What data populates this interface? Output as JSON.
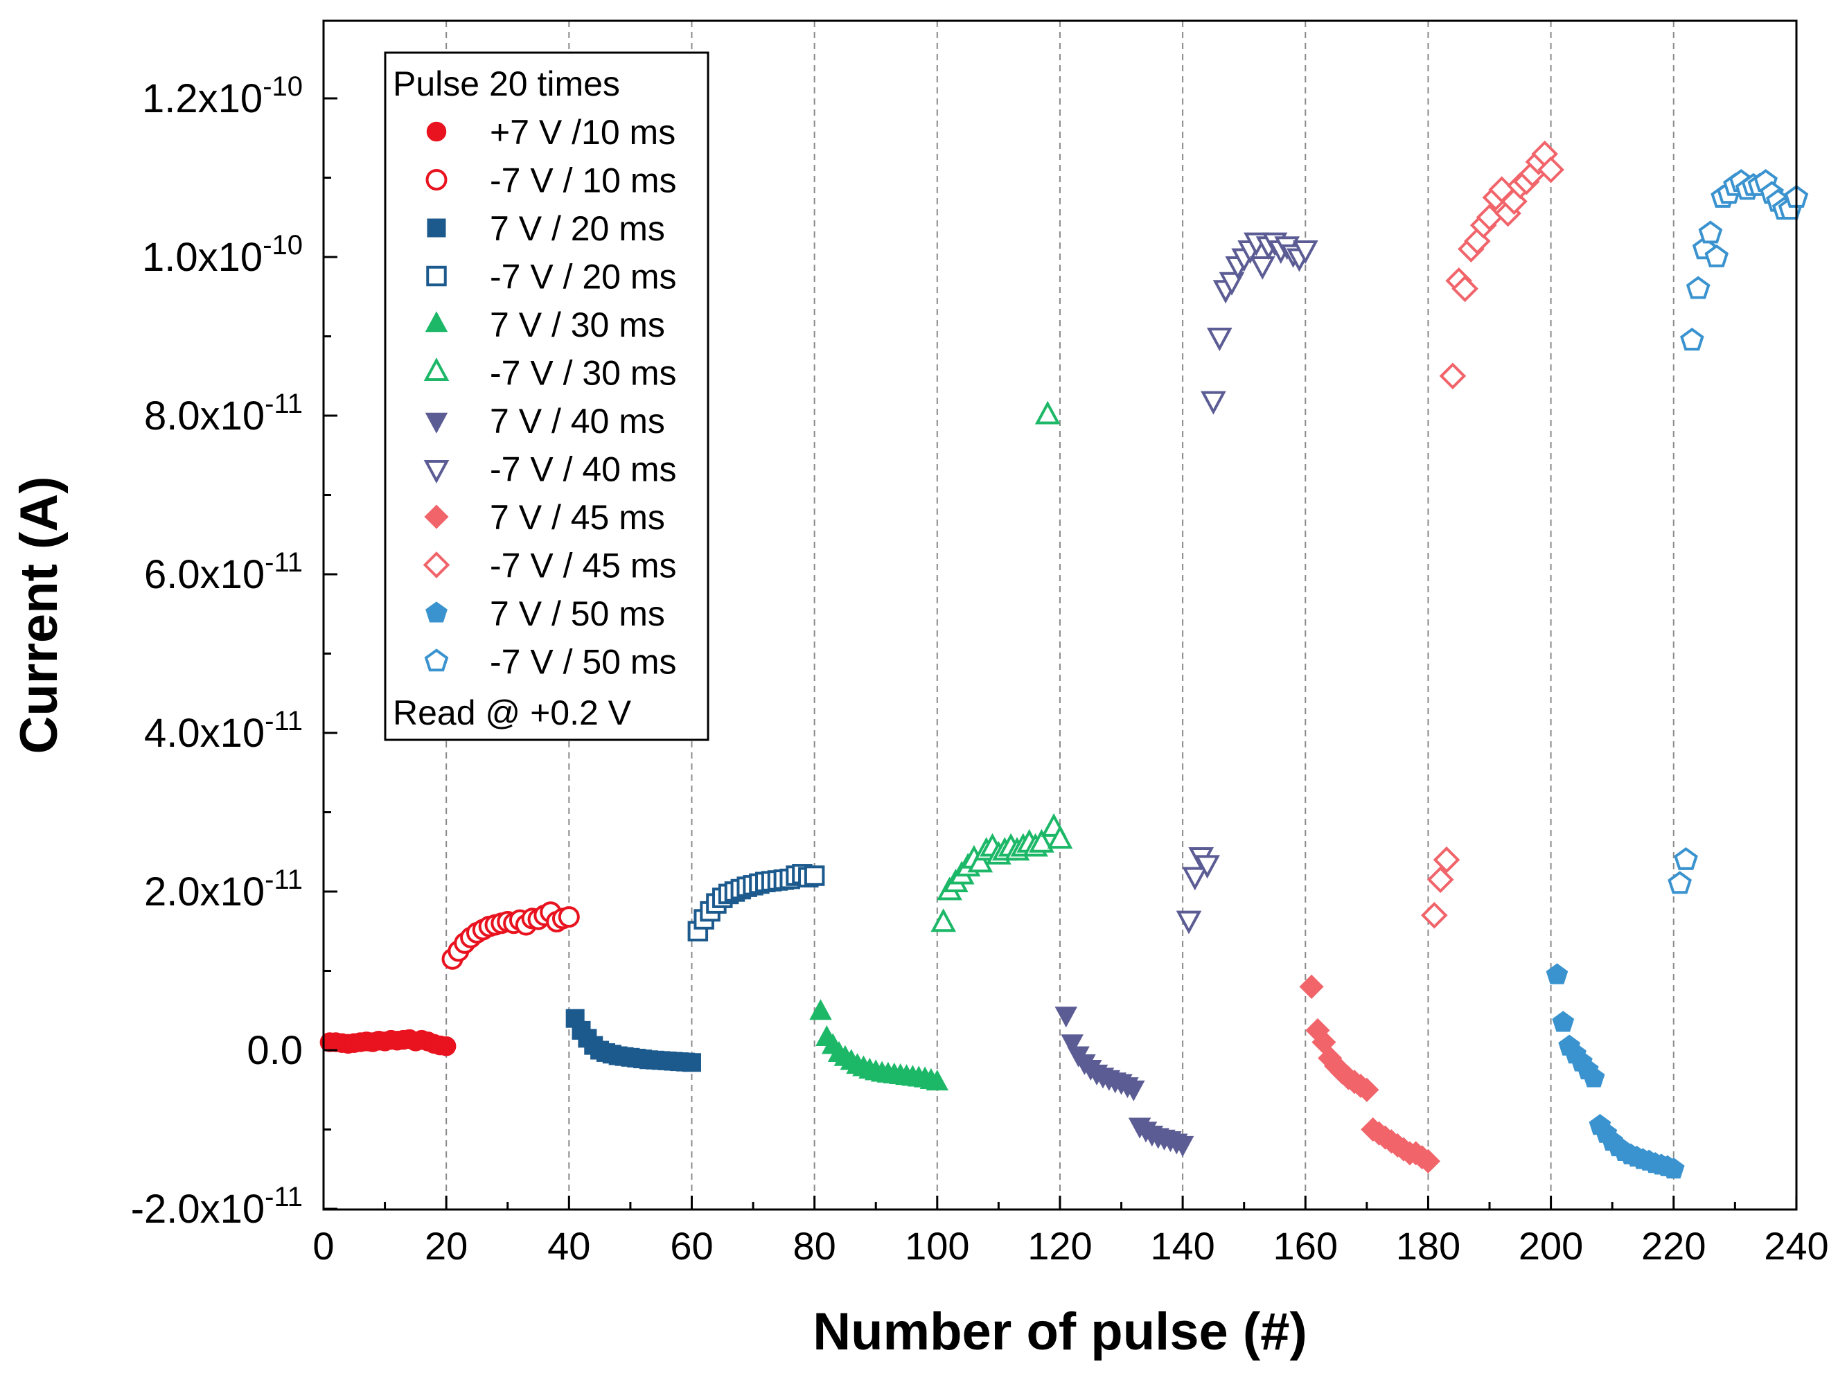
{
  "chart_data": {
    "type": "scatter",
    "title": "",
    "xlabel": "Number of pulse (#)",
    "ylabel": "Current (A)",
    "xlim": [
      0,
      240
    ],
    "ylim": [
      -2e-11,
      1.3e-10
    ],
    "x_ticks": [
      0,
      20,
      40,
      60,
      80,
      100,
      120,
      140,
      160,
      180,
      200,
      220,
      240
    ],
    "x_tick_labels": [
      "0",
      "20",
      "40",
      "60",
      "80",
      "100",
      "120",
      "140",
      "160",
      "180",
      "200",
      "220",
      "240"
    ],
    "y_ticks": [
      {
        "value": -2e-11,
        "mantissa": "-2.0x10",
        "exp": "-11"
      },
      {
        "value": 0,
        "mantissa": "0.0",
        "exp": ""
      },
      {
        "value": 2e-11,
        "mantissa": "2.0x10",
        "exp": "-11"
      },
      {
        "value": 4e-11,
        "mantissa": "4.0x10",
        "exp": "-11"
      },
      {
        "value": 6e-11,
        "mantissa": "6.0x10",
        "exp": "-11"
      },
      {
        "value": 8e-11,
        "mantissa": "8.0x10",
        "exp": "-11"
      },
      {
        "value": 1e-10,
        "mantissa": "1.0x10",
        "exp": "-10"
      },
      {
        "value": 1.2e-10,
        "mantissa": "1.2x10",
        "exp": "-10"
      }
    ],
    "vertical_dashed_lines_at": [
      20,
      40,
      60,
      80,
      100,
      120,
      140,
      160,
      180,
      200,
      220
    ],
    "legend": {
      "placement": "top-left",
      "title": "Pulse 20 times",
      "footer": "Read @ +0.2 V"
    },
    "series": [
      {
        "name": "+7 V /10 ms",
        "color": "#e8131f",
        "marker": "circle",
        "filled": true,
        "x": [
          1,
          2,
          3,
          4,
          5,
          6,
          7,
          8,
          9,
          10,
          11,
          12,
          13,
          14,
          15,
          16,
          17,
          18,
          19,
          20
        ],
        "y": [
          1e-12,
          1e-12,
          9e-13,
          8e-13,
          9e-13,
          1e-12,
          1.1e-12,
          1e-12,
          1.2e-12,
          1.1e-12,
          1.3e-12,
          1.2e-12,
          1.3e-12,
          1.4e-12,
          1.1e-12,
          1.3e-12,
          1.1e-12,
          8e-13,
          6e-13,
          5e-13
        ]
      },
      {
        "name": "-7 V / 10 ms",
        "color": "#e8131f",
        "marker": "circle",
        "filled": false,
        "x": [
          21,
          22,
          23,
          24,
          25,
          26,
          27,
          28,
          29,
          30,
          31,
          32,
          33,
          34,
          35,
          36,
          37,
          38,
          39,
          40
        ],
        "y": [
          1.15e-11,
          1.25e-11,
          1.35e-11,
          1.42e-11,
          1.48e-11,
          1.52e-11,
          1.56e-11,
          1.58e-11,
          1.6e-11,
          1.62e-11,
          1.6e-11,
          1.64e-11,
          1.58e-11,
          1.66e-11,
          1.65e-11,
          1.7e-11,
          1.74e-11,
          1.62e-11,
          1.66e-11,
          1.68e-11
        ]
      },
      {
        "name": "7 V / 20 ms",
        "color": "#1c5a8e",
        "marker": "square",
        "filled": true,
        "x": [
          41,
          42,
          43,
          44,
          45,
          46,
          47,
          48,
          49,
          50,
          51,
          52,
          53,
          54,
          55,
          56,
          57,
          58,
          59,
          60
        ],
        "y": [
          4e-12,
          2.5e-12,
          1.5e-12,
          6e-13,
          0.0,
          -3e-13,
          -5e-13,
          -7e-13,
          -8e-13,
          -9e-13,
          -1e-12,
          -1.1e-12,
          -1.2e-12,
          -1.25e-12,
          -1.3e-12,
          -1.35e-12,
          -1.4e-12,
          -1.45e-12,
          -1.5e-12,
          -1.55e-12
        ]
      },
      {
        "name": "-7 V / 20 ms",
        "color": "#1c5a8e",
        "marker": "square",
        "filled": false,
        "x": [
          61,
          62,
          63,
          64,
          65,
          66,
          67,
          68,
          69,
          70,
          71,
          72,
          73,
          74,
          75,
          76,
          77,
          78,
          79,
          80
        ],
        "y": [
          1.5e-11,
          1.65e-11,
          1.75e-11,
          1.85e-11,
          1.92e-11,
          1.97e-11,
          2e-11,
          2.03e-11,
          2.06e-11,
          2.08e-11,
          2.1e-11,
          2.12e-11,
          2.13e-11,
          2.14e-11,
          2.15e-11,
          2.16e-11,
          2.2e-11,
          2.22e-11,
          2.18e-11,
          2.2e-11
        ]
      },
      {
        "name": "7 V / 30 ms",
        "color": "#1cb868",
        "marker": "triangle-up",
        "filled": true,
        "x": [
          81,
          82,
          83,
          84,
          85,
          86,
          87,
          88,
          89,
          90,
          91,
          92,
          93,
          94,
          95,
          96,
          97,
          98,
          99,
          100
        ],
        "y": [
          4.8e-12,
          1.5e-12,
          5e-13,
          -5e-13,
          -1e-12,
          -1.5e-12,
          -2e-12,
          -2.3e-12,
          -2.6e-12,
          -2.8e-12,
          -3e-12,
          -3.1e-12,
          -3.2e-12,
          -3.3e-12,
          -3.4e-12,
          -3.5e-12,
          -3.6e-12,
          -3.7e-12,
          -3.9e-12,
          -4.1e-12
        ]
      },
      {
        "name": "-7 V / 30 ms",
        "color": "#1cb868",
        "marker": "triangle-up",
        "filled": false,
        "x": [
          101,
          102,
          103,
          104,
          105,
          106,
          107,
          108,
          109,
          110,
          111,
          112,
          113,
          114,
          115,
          116,
          117,
          118,
          119,
          120
        ],
        "y": [
          1.6e-11,
          2e-11,
          2.1e-11,
          2.2e-11,
          2.3e-11,
          2.4e-11,
          2.35e-11,
          2.5e-11,
          2.55e-11,
          2.45e-11,
          2.5e-11,
          2.55e-11,
          2.5e-11,
          2.55e-11,
          2.6e-11,
          2.55e-11,
          2.6e-11,
          8e-11,
          2.8e-11,
          2.65e-11
        ]
      },
      {
        "name": "7 V / 40 ms",
        "color": "#5c5c95",
        "marker": "triangle-down",
        "filled": true,
        "x": [
          121,
          122,
          123,
          124,
          125,
          126,
          127,
          128,
          129,
          130,
          131,
          132,
          133,
          134,
          135,
          136,
          137,
          138,
          139,
          140
        ],
        "y": [
          4.5e-12,
          1e-12,
          -5e-13,
          -1.5e-12,
          -2.2e-12,
          -2.8e-12,
          -3.2e-12,
          -3.5e-12,
          -3.8e-12,
          -4e-12,
          -4.4e-12,
          -4.8e-12,
          -9.5e-12,
          -1e-11,
          -1.05e-11,
          -1.08e-11,
          -1.1e-11,
          -1.12e-11,
          -1.15e-11,
          -1.18e-11
        ]
      },
      {
        "name": "-7 V / 40 ms",
        "color": "#5c5c95",
        "marker": "triangle-down",
        "filled": false,
        "x": [
          141,
          142,
          143,
          144,
          145,
          146,
          147,
          148,
          149,
          150,
          151,
          152,
          153,
          154,
          155,
          156,
          157,
          158,
          159,
          160
        ],
        "y": [
          1.65e-11,
          2.2e-11,
          2.45e-11,
          2.35e-11,
          8.2e-11,
          9e-11,
          9.6e-11,
          9.7e-11,
          9.9e-11,
          1e-10,
          1.01e-10,
          1.02e-10,
          9.9e-11,
          1.015e-10,
          1.02e-10,
          1.01e-10,
          1.015e-10,
          1.005e-10,
          1e-10,
          1.01e-10
        ]
      },
      {
        "name": "7 V / 45 ms",
        "color": "#f0646a",
        "marker": "diamond",
        "filled": true,
        "x": [
          161,
          162,
          163,
          164,
          165,
          166,
          167,
          168,
          169,
          170,
          171,
          172,
          173,
          174,
          175,
          176,
          177,
          178,
          179,
          180
        ],
        "y": [
          8e-12,
          2.5e-12,
          1e-12,
          -1e-12,
          -2e-12,
          -2.8e-12,
          -3.5e-12,
          -4e-12,
          -4.5e-12,
          -5e-12,
          -1e-11,
          -1.05e-11,
          -1.1e-11,
          -1.15e-11,
          -1.2e-11,
          -1.25e-11,
          -1.3e-11,
          -1.3e-11,
          -1.35e-11,
          -1.4e-11
        ]
      },
      {
        "name": "-7 V / 45 ms",
        "color": "#f0646a",
        "marker": "diamond",
        "filled": false,
        "x": [
          181,
          182,
          183,
          184,
          185,
          186,
          187,
          188,
          189,
          190,
          191,
          192,
          193,
          194,
          195,
          196,
          197,
          198,
          199,
          200
        ],
        "y": [
          1.7e-11,
          2.15e-11,
          2.4e-11,
          8.5e-11,
          9.7e-11,
          9.6e-11,
          1.01e-10,
          1.02e-10,
          1.04e-10,
          1.05e-10,
          1.075e-10,
          1.085e-10,
          1.055e-10,
          1.07e-10,
          1.09e-10,
          1.095e-10,
          1.105e-10,
          1.12e-10,
          1.13e-10,
          1.11e-10
        ]
      },
      {
        "name": "7 V / 50 ms",
        "color": "#3a93cf",
        "marker": "pentagon",
        "filled": true,
        "x": [
          201,
          202,
          203,
          204,
          205,
          206,
          207,
          208,
          209,
          210,
          211,
          212,
          213,
          214,
          215,
          216,
          217,
          218,
          219,
          220
        ],
        "y": [
          9.5e-12,
          3.5e-12,
          5e-13,
          -5e-13,
          -1.5e-12,
          -2.5e-12,
          -3.5e-12,
          -9.5e-12,
          -1.05e-11,
          -1.15e-11,
          -1.22e-11,
          -1.28e-11,
          -1.32e-11,
          -1.35e-11,
          -1.38e-11,
          -1.4e-11,
          -1.43e-11,
          -1.45e-11,
          -1.47e-11,
          -1.5e-11
        ]
      },
      {
        "name": "-7 V / 50 ms",
        "color": "#3a93cf",
        "marker": "pentagon",
        "filled": false,
        "x": [
          221,
          222,
          223,
          224,
          225,
          226,
          227,
          228,
          229,
          230,
          231,
          232,
          233,
          234,
          235,
          236,
          237,
          238,
          239,
          240
        ],
        "y": [
          2.1e-11,
          2.4e-11,
          8.95e-11,
          9.6e-11,
          1.01e-10,
          1.03e-10,
          1e-10,
          1.075e-10,
          1.08e-10,
          1.09e-10,
          1.095e-10,
          1.085e-10,
          1.09e-10,
          1.09e-10,
          1.095e-10,
          1.08e-10,
          1.07e-10,
          1.06e-10,
          1.06e-10,
          1.075e-10
        ]
      }
    ]
  }
}
